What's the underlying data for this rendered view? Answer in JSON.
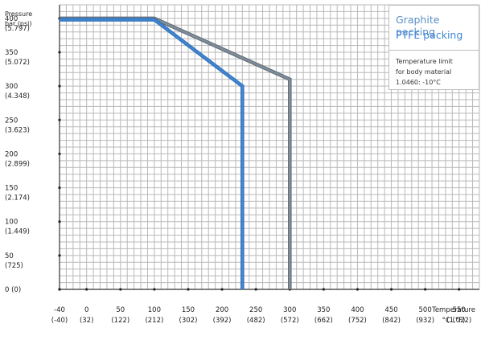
{
  "chart_data": {
    "type": "line",
    "ylabel_lines": [
      "Pressure",
      "bar (psi)"
    ],
    "xlabel_lines": [
      "Temperature",
      "°C (°F)"
    ],
    "y_ticks": [
      {
        "value": 400,
        "label": "400",
        "sub": "(5.797)"
      },
      {
        "value": 350,
        "label": "350",
        "sub": "(5.072)"
      },
      {
        "value": 300,
        "label": "300",
        "sub": "(4.348)"
      },
      {
        "value": 250,
        "label": "250",
        "sub": "(3.623)"
      },
      {
        "value": 200,
        "label": "200",
        "sub": "(2.899)"
      },
      {
        "value": 150,
        "label": "150",
        "sub": "(2.174)"
      },
      {
        "value": 100,
        "label": "100",
        "sub": "(1.449)"
      },
      {
        "value": 50,
        "label": "50",
        "sub": "(725)"
      },
      {
        "value": 0,
        "label": "0 (0)",
        "sub": ""
      }
    ],
    "x_ticks": [
      {
        "value": -40,
        "label": "-40",
        "sub": "(-40)"
      },
      {
        "value": 0,
        "label": "0",
        "sub": "(32)"
      },
      {
        "value": 50,
        "label": "50",
        "sub": "(122)"
      },
      {
        "value": 100,
        "label": "100",
        "sub": "(212)"
      },
      {
        "value": 150,
        "label": "150",
        "sub": "(302)"
      },
      {
        "value": 200,
        "label": "200",
        "sub": "(392)"
      },
      {
        "value": 250,
        "label": "250",
        "sub": "(482)"
      },
      {
        "value": 300,
        "label": "300",
        "sub": "(572)"
      },
      {
        "value": 350,
        "label": "350",
        "sub": "(662)"
      },
      {
        "value": 400,
        "label": "400",
        "sub": "(752)"
      },
      {
        "value": 450,
        "label": "450",
        "sub": "(842)"
      },
      {
        "value": 500,
        "label": "500",
        "sub": "(932)"
      },
      {
        "value": 550,
        "label": "550",
        "sub": "(1.022)"
      }
    ],
    "xlim": [
      -40,
      580
    ],
    "ylim": [
      0,
      420
    ],
    "grid": true,
    "legend_position": "top-right",
    "series": [
      {
        "name": "Graphite packing",
        "color": "#7f8c99",
        "points": [
          [
            -40,
            400
          ],
          [
            100,
            400
          ],
          [
            300,
            310
          ],
          [
            300,
            0
          ]
        ]
      },
      {
        "name": "PTFE packing",
        "color": "#3f86d6",
        "points": [
          [
            -40,
            398
          ],
          [
            100,
            398
          ],
          [
            230,
            300
          ],
          [
            230,
            0
          ]
        ]
      }
    ],
    "annotation": "Temperature limit\nfor body material\n1.0460: -10°C"
  },
  "legend": {
    "graphite_label": "Graphite packing",
    "ptfe_label": "PTFE packing",
    "note": "Temperature limit\nfor body material\n1.0460: -10°C"
  }
}
